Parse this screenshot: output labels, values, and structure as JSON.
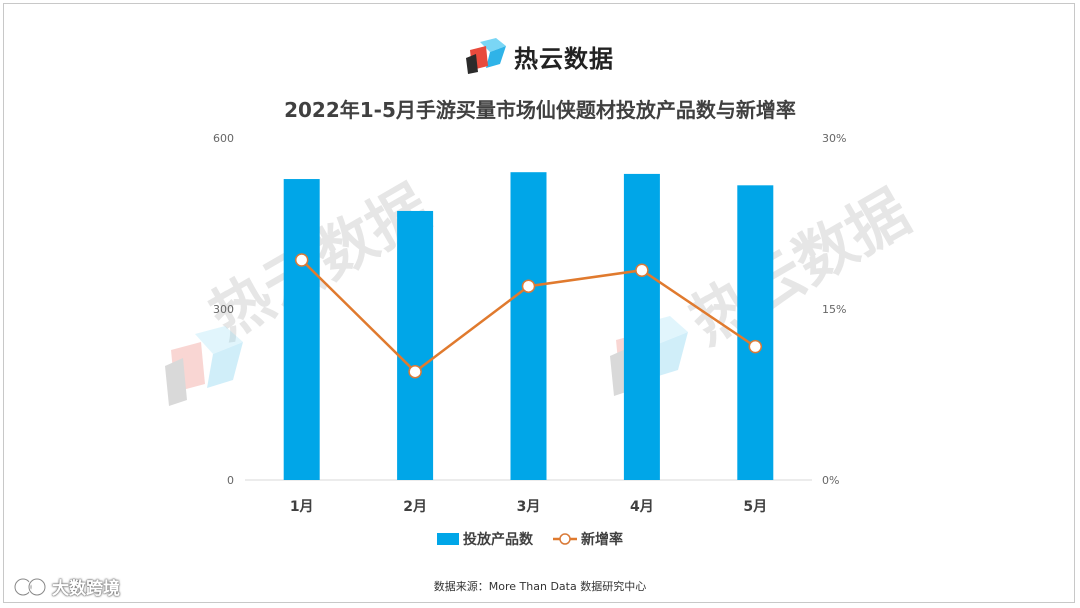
{
  "brand": {
    "name": "热云数据",
    "watermark": "热云数据"
  },
  "corner_brand": "大数跨境",
  "source_note": "数据来源：More Than Data 数据研究中心",
  "colors": {
    "bar": "#00A6E8",
    "line": "#E07A2E",
    "axis": "#d9d9d9",
    "text": "#404040"
  },
  "chart_data": {
    "type": "bar",
    "title": "2022年1-5月手游买量市场仙侠题材投放产品数与新增率",
    "categories": [
      "1月",
      "2月",
      "3月",
      "4月",
      "5月"
    ],
    "series": [
      {
        "name": "投放产品数",
        "type": "bar",
        "axis": "left",
        "values": [
          528,
          472,
          540,
          537,
          517
        ]
      },
      {
        "name": "新增率",
        "type": "line",
        "axis": "right",
        "values": [
          19.3,
          9.5,
          17.0,
          18.4,
          11.7
        ]
      }
    ],
    "y_left": {
      "min": 0,
      "max": 600,
      "ticks": [
        "0",
        "300",
        "600"
      ]
    },
    "y_right": {
      "min": 0,
      "max": 30,
      "ticks": [
        "0%",
        "15%",
        "30%"
      ]
    },
    "grid": false,
    "legend_position": "bottom"
  }
}
